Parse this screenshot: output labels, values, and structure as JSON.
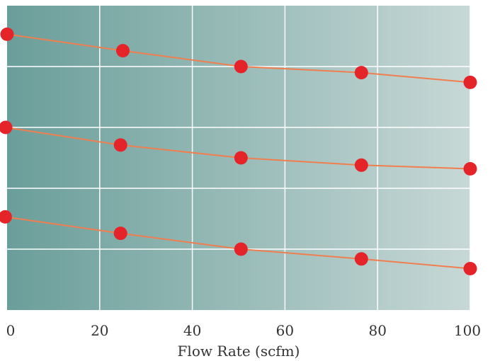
{
  "chart_data": {
    "type": "scatter",
    "title": "",
    "xlabel": "Flow Rate (scfm)",
    "ylabel": "",
    "xlim": [
      0,
      100
    ],
    "xticks": [
      0,
      20,
      40,
      60,
      80,
      100
    ],
    "xtick_labels": [
      "0",
      "20",
      "40",
      "60",
      "80",
      "100"
    ],
    "ylim": [
      0,
      5
    ],
    "grid": true,
    "legend": "none",
    "colors": {
      "background_left": "#6a9e9a",
      "background_right": "#c7d8d6",
      "gridline": "#ffffff",
      "line": "#f07e4f",
      "marker": "#e52429"
    },
    "series": [
      {
        "points": [
          {
            "x": 0,
            "y": 4.53
          },
          {
            "x": 25,
            "y": 4.26
          },
          {
            "x": 50.5,
            "y": 4.0
          },
          {
            "x": 76.5,
            "y": 3.9
          },
          {
            "x": 100,
            "y": 3.74
          }
        ]
      },
      {
        "points": [
          {
            "x": -0.3,
            "y": 3.0
          },
          {
            "x": 24.5,
            "y": 2.71
          },
          {
            "x": 50.5,
            "y": 2.5
          },
          {
            "x": 76.5,
            "y": 2.38
          },
          {
            "x": 100,
            "y": 2.32
          }
        ]
      },
      {
        "points": [
          {
            "x": -0.4,
            "y": 1.53
          },
          {
            "x": 24.5,
            "y": 1.26
          },
          {
            "x": 50.5,
            "y": 1.0
          },
          {
            "x": 76.5,
            "y": 0.84
          },
          {
            "x": 100,
            "y": 0.68
          }
        ]
      }
    ]
  }
}
